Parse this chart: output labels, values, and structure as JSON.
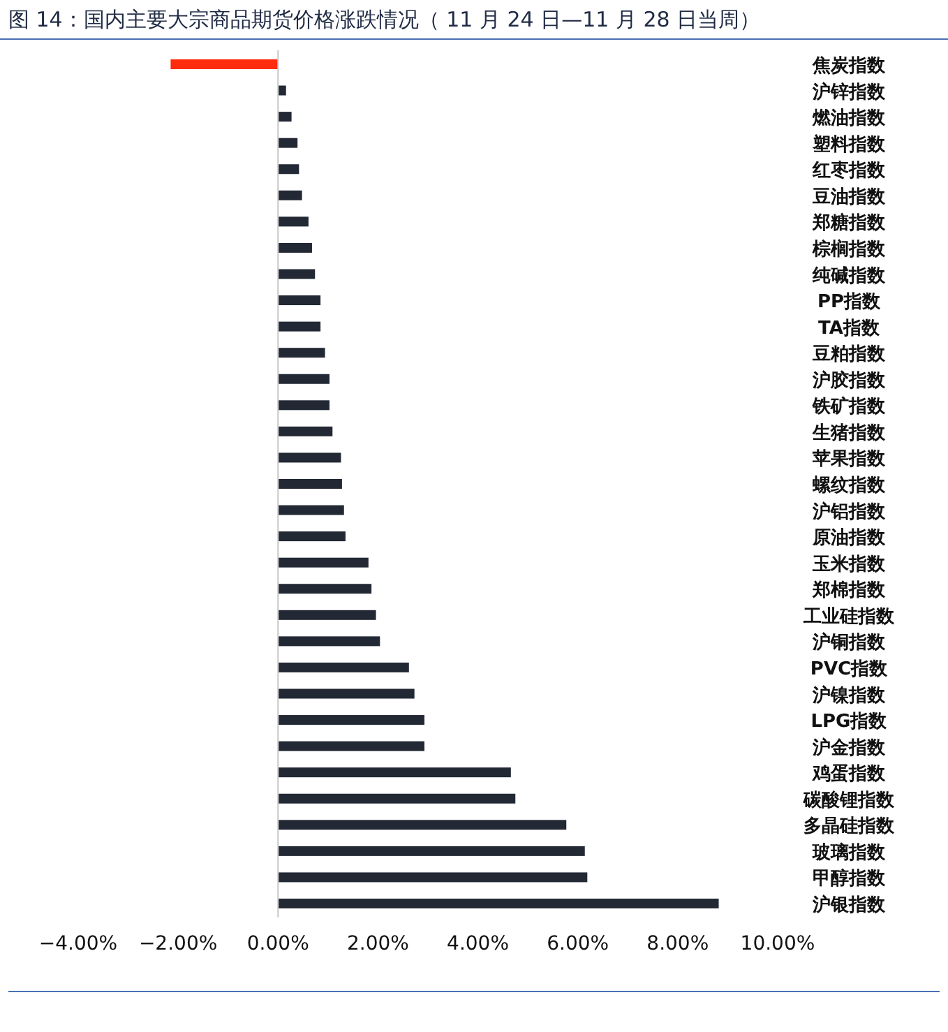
{
  "chart_data": {
    "type": "bar",
    "orientation": "horizontal",
    "title": "图 14：国内主要大宗商品期货价格涨跌情况（ 11 月 24 日—11 月 28 日当周）",
    "categories": [
      "焦炭指数",
      "沪锌指数",
      "燃油指数",
      "塑料指数",
      "红枣指数",
      "豆油指数",
      "郑糖指数",
      "棕榈指数",
      "纯碱指数",
      "PP指数",
      "TA指数",
      "豆粕指数",
      "沪胶指数",
      "铁矿指数",
      "生猪指数",
      "苹果指数",
      "螺纹指数",
      "沪铝指数",
      "原油指数",
      "玉米指数",
      "郑棉指数",
      "工业硅指数",
      "沪铜指数",
      "PVC指数",
      "沪镍指数",
      "LPG指数",
      "沪金指数",
      "鸡蛋指数",
      "碳酸锂指数",
      "多晶硅指数",
      "玻璃指数",
      "甲醇指数",
      "沪银指数"
    ],
    "values": [
      -2.15,
      0.16,
      0.27,
      0.39,
      0.42,
      0.48,
      0.61,
      0.68,
      0.74,
      0.85,
      0.85,
      0.94,
      1.03,
      1.03,
      1.09,
      1.26,
      1.28,
      1.32,
      1.35,
      1.81,
      1.87,
      1.96,
      2.04,
      2.62,
      2.73,
      2.93,
      2.93,
      4.66,
      4.75,
      5.77,
      6.14,
      6.19,
      8.82
    ],
    "colors": [
      "#fe2d0e",
      "#222834",
      "#222834",
      "#222834",
      "#222834",
      "#222834",
      "#222834",
      "#222834",
      "#222834",
      "#222834",
      "#222834",
      "#222834",
      "#222834",
      "#222834",
      "#222834",
      "#222834",
      "#222834",
      "#222834",
      "#222834",
      "#222834",
      "#222834",
      "#222834",
      "#222834",
      "#222834",
      "#222834",
      "#222834",
      "#222834",
      "#222834",
      "#222834",
      "#222834",
      "#222834",
      "#222834",
      "#222834"
    ],
    "xlim": [
      -4,
      10
    ],
    "xticks": [
      {
        "value": -4,
        "label": "−4.00%"
      },
      {
        "value": -2,
        "label": "−2.00%"
      },
      {
        "value": 0,
        "label": "0.00%"
      },
      {
        "value": 2,
        "label": "2.00%"
      },
      {
        "value": 4,
        "label": "4.00%"
      },
      {
        "value": 6,
        "label": "6.00%"
      },
      {
        "value": 8,
        "label": "8.00%"
      },
      {
        "value": 10,
        "label": "10.00%"
      }
    ],
    "xlabel": null
  }
}
